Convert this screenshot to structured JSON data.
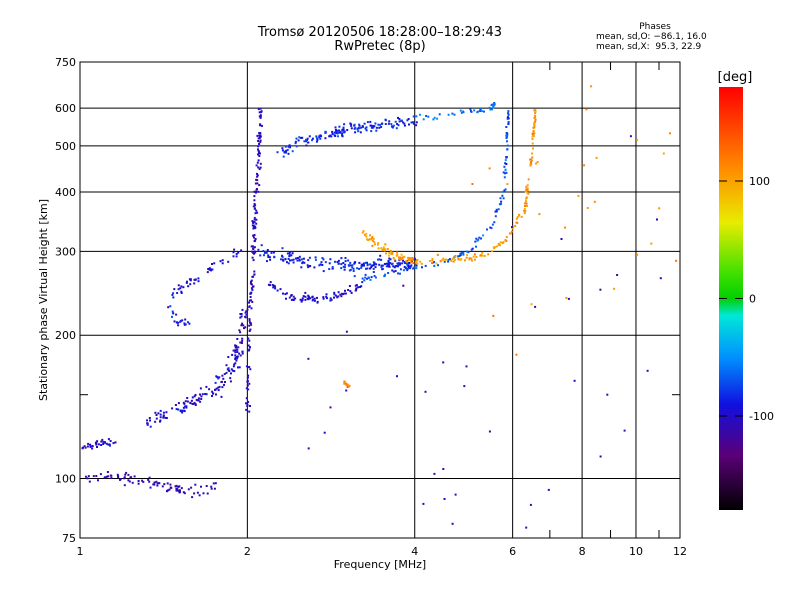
{
  "chart_data": {
    "type": "scatter",
    "title": "Tromsø 20120506 18:28:00–18:29:43",
    "subtitle": "RwPretec (8p)",
    "xlabel": "Frequency [MHz]",
    "ylabel": "Stationary phase Virtual Height [km]",
    "x_scale": "log",
    "y_scale": "log",
    "xlim": [
      1,
      12
    ],
    "ylim": [
      75,
      750
    ],
    "x_ticks": [
      1,
      2,
      4,
      6,
      8,
      10,
      12
    ],
    "x_tick_labels": [
      "1",
      "2",
      "4",
      "6",
      "8",
      "10",
      "12"
    ],
    "y_ticks": [
      75,
      100,
      200,
      300,
      400,
      500,
      600,
      750
    ],
    "y_tick_labels": [
      "75",
      "100",
      "200",
      "300",
      "400",
      "500",
      "600",
      "750"
    ],
    "grid": true,
    "colorbar": {
      "label": "[deg]",
      "range": [
        -180,
        180
      ],
      "ticks": [
        100,
        0,
        -100
      ],
      "tick_labels": [
        "100",
        "0",
        "-100"
      ]
    },
    "phase_stats": {
      "header": "Phases",
      "line_o": "mean, sd,O: −86.1, 16.0",
      "line_x": "mean, sd,X:  95.3, 22.9"
    },
    "series": [
      {
        "traces": [
          {
            "x": [
              1.0,
              1.12,
              1.25,
              1.38,
              1.5,
              1.62,
              1.75
            ],
            "y": [
              100,
              101,
              100,
              97,
              95,
              94,
              96
            ],
            "phase": -110,
            "spread": 0.025,
            "n": 90
          },
          {
            "x": [
              1.0,
              1.08,
              1.15
            ],
            "y": [
              116,
              118,
              119
            ],
            "phase": -100,
            "spread": 0.02,
            "n": 35
          },
          {
            "x": [
              1.3,
              1.4,
              1.5,
              1.6,
              1.7,
              1.8,
              1.9,
              1.95
            ],
            "y": [
              128,
              135,
              140,
              145,
              150,
              160,
              175,
              190
            ],
            "phase": -100,
            "spread": 0.04,
            "n": 130
          },
          {
            "x": [
              1.9,
              1.95,
              1.98
            ],
            "y": [
              180,
              200,
              230
            ],
            "phase": -110,
            "spread": 0.03,
            "n": 30
          },
          {
            "x": [
              2.0,
              2.02,
              2.05,
              2.07,
              2.1,
              2.12
            ],
            "y": [
              140,
              200,
              300,
              380,
              480,
              600
            ],
            "phase": -105,
            "spread": 0.015,
            "n": 160
          },
          {
            "x": [
              1.45,
              1.55,
              1.65,
              1.75,
              1.85,
              1.95
            ],
            "y": [
              240,
              255,
              265,
              280,
              290,
              300
            ],
            "phase": -95,
            "spread": 0.02,
            "n": 45
          },
          {
            "x": [
              1.45,
              1.5,
              1.6
            ],
            "y": [
              228,
              215,
              210
            ],
            "phase": -90,
            "spread": 0.02,
            "n": 20
          },
          {
            "x": [
              2.1,
              2.4,
              2.8,
              3.2,
              3.6,
              4.0
            ],
            "y": [
              300,
              290,
              280,
              280,
              282,
              285
            ],
            "phase": -85,
            "spread": 0.035,
            "n": 210
          },
          {
            "x": [
              2.2,
              2.4,
              2.6,
              2.8,
              3.0,
              3.2
            ],
            "y": [
              255,
              240,
              238,
              240,
              245,
              255
            ],
            "phase": -100,
            "spread": 0.02,
            "n": 80
          },
          {
            "x": [
              3.2,
              3.6,
              4.0,
              4.5,
              5.0,
              5.5,
              5.8
            ],
            "y": [
              262,
              270,
              278,
              285,
              300,
              340,
              400
            ],
            "phase": -70,
            "spread": 0.012,
            "n": 80
          },
          {
            "x": [
              5.8,
              5.85,
              5.9
            ],
            "y": [
              400,
              500,
              600
            ],
            "phase": -70,
            "spread": 0.01,
            "n": 40
          },
          {
            "x": [
              2.3,
              2.5,
              2.8,
              3.0,
              3.3,
              3.6,
              4.0
            ],
            "y": [
              480,
              510,
              525,
              540,
              550,
              555,
              562
            ],
            "phase": -85,
            "spread": 0.025,
            "n": 160
          },
          {
            "x": [
              4.0,
              4.5,
              5.0,
              5.5,
              5.6
            ],
            "y": [
              570,
              580,
              590,
              600,
              620
            ],
            "phase": -60,
            "spread": 0.015,
            "n": 40
          },
          {
            "x": [
              3.2,
              3.5,
              3.8,
              4.1
            ],
            "y": [
              330,
              305,
              290,
              285
            ],
            "phase": 105,
            "spread": 0.02,
            "n": 70
          },
          {
            "x": [
              4.0,
              4.5,
              5.0,
              5.5,
              5.9,
              6.2
            ],
            "y": [
              285,
              287,
              290,
              300,
              320,
              360
            ],
            "phase": 105,
            "spread": 0.015,
            "n": 70
          },
          {
            "x": [
              6.3,
              6.5,
              6.6
            ],
            "y": [
              360,
              480,
              600
            ],
            "phase": 110,
            "spread": 0.008,
            "n": 60
          },
          {
            "x": [
              3.0,
              3.05
            ],
            "y": [
              160,
              155
            ],
            "phase": 120,
            "spread": 0.012,
            "n": 12
          },
          {
            "x": [
              2.7,
              3.5,
              4.3,
              5.2,
              6.0,
              7.0,
              8.5,
              10.0
            ],
            "y": [
              120,
              190,
              150,
              90,
              130,
              110,
              230,
              520
            ],
            "phase": -110,
            "spread": 0.7,
            "n": 40
          },
          {
            "x": [
              4.5,
              5.2,
              6.1,
              7.2,
              9.5,
              11.0
            ],
            "y": [
              330,
              470,
              200,
              440,
              370,
              280
            ],
            "phase": 110,
            "spread": 0.7,
            "n": 30
          }
        ]
      }
    ]
  }
}
